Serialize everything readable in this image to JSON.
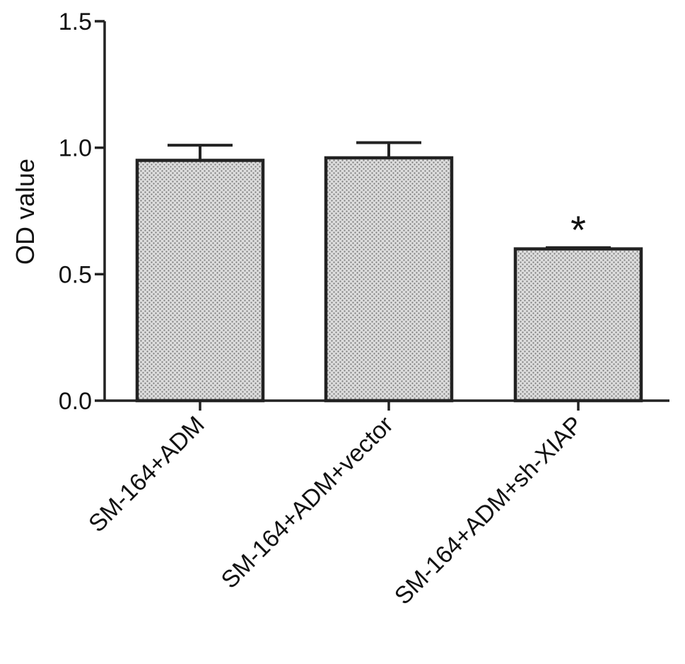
{
  "chart_data": {
    "type": "bar",
    "title": "",
    "xlabel": "",
    "ylabel": "OD value",
    "ylim": [
      0,
      1.5
    ],
    "yticks": [
      "0.0",
      "0.5",
      "1.0",
      "1.5"
    ],
    "categories": [
      "SM-164+ADM",
      "SM-164+ADM+vector",
      "SM-164+ADM+sh-XIAP"
    ],
    "values": [
      0.95,
      0.96,
      0.6
    ],
    "error": [
      0.06,
      0.06,
      0.005
    ],
    "annotations": [
      "",
      "",
      "*"
    ],
    "grid": false,
    "legend": "none",
    "bar_fill": "stippled gray",
    "colors": {
      "bar_fill": "#cfcfcf",
      "bar_stroke": "#222222",
      "axis": "#222222",
      "text": "#111111"
    }
  }
}
